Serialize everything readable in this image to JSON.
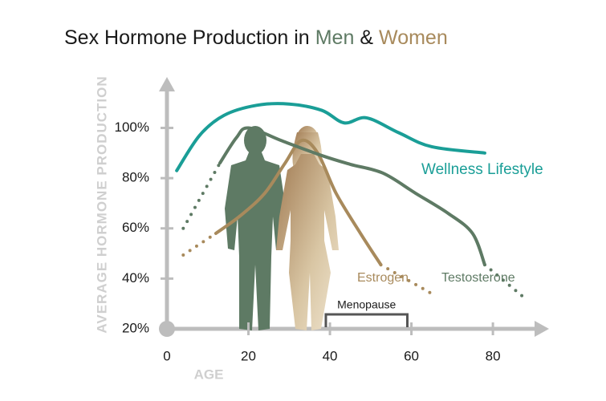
{
  "chart_data": {
    "type": "line",
    "title": [
      {
        "text": "Sex Hormone Production in",
        "color": "#1a1a1a"
      },
      {
        "text": "Men",
        "color": "#5e7a64"
      },
      {
        "text": "&",
        "color": "#1a1a1a"
      },
      {
        "text": "Women",
        "color": "#a88a5c"
      }
    ],
    "y_label": "AVERAGE HORMONE PRODUCTION",
    "x_label": "AGE",
    "xlim": [
      0,
      92
    ],
    "ylim": [
      20,
      119
    ],
    "xticks": [
      0,
      20,
      40,
      60,
      80
    ],
    "yticks": [
      {
        "value": 20,
        "label": "20%"
      },
      {
        "value": 40,
        "label": "40%"
      },
      {
        "value": 60,
        "label": "60%"
      },
      {
        "value": 80,
        "label": "80%"
      },
      {
        "value": 100,
        "label": "100%"
      }
    ],
    "series": [
      {
        "name": "Wellness Lifestyle",
        "color": "#1a9e97",
        "x": [
          2.4,
          8,
          14,
          22,
          30,
          38,
          43.5,
          49,
          57,
          65,
          78
        ],
        "values": [
          83,
          97,
          105,
          109,
          109.5,
          107,
          102,
          104,
          98,
          92.5,
          90
        ]
      },
      {
        "name": "Estrogen",
        "color": "#a88a5c",
        "x": [
          12,
          18,
          24,
          29,
          33,
          37,
          41.5,
          47.5,
          52.5
        ],
        "values": [
          58,
          65,
          74,
          86,
          95,
          90,
          74,
          58,
          45.5
        ],
        "dotted": [
          {
            "x": [
              4,
              12
            ],
            "values": [
              49.4,
              58
            ]
          },
          {
            "x": [
              52.5,
              65
            ],
            "values": [
              45.5,
              34
            ]
          }
        ]
      },
      {
        "name": "Testosterone",
        "color": "#5e7a64",
        "x": [
          13,
          17,
          20,
          28,
          38,
          45,
          53,
          61,
          69,
          75,
          78
        ],
        "values": [
          86,
          96,
          100,
          95,
          89,
          85.5,
          82,
          74,
          66,
          58,
          45.5
        ],
        "dotted": [
          {
            "x": [
              4,
              13
            ],
            "values": [
              60,
              86
            ]
          },
          {
            "x": [
              78,
              88
            ],
            "values": [
              45.5,
              32
            ]
          }
        ]
      }
    ],
    "annotation": {
      "text": "Menopause",
      "x_range": [
        39,
        59
      ]
    }
  }
}
